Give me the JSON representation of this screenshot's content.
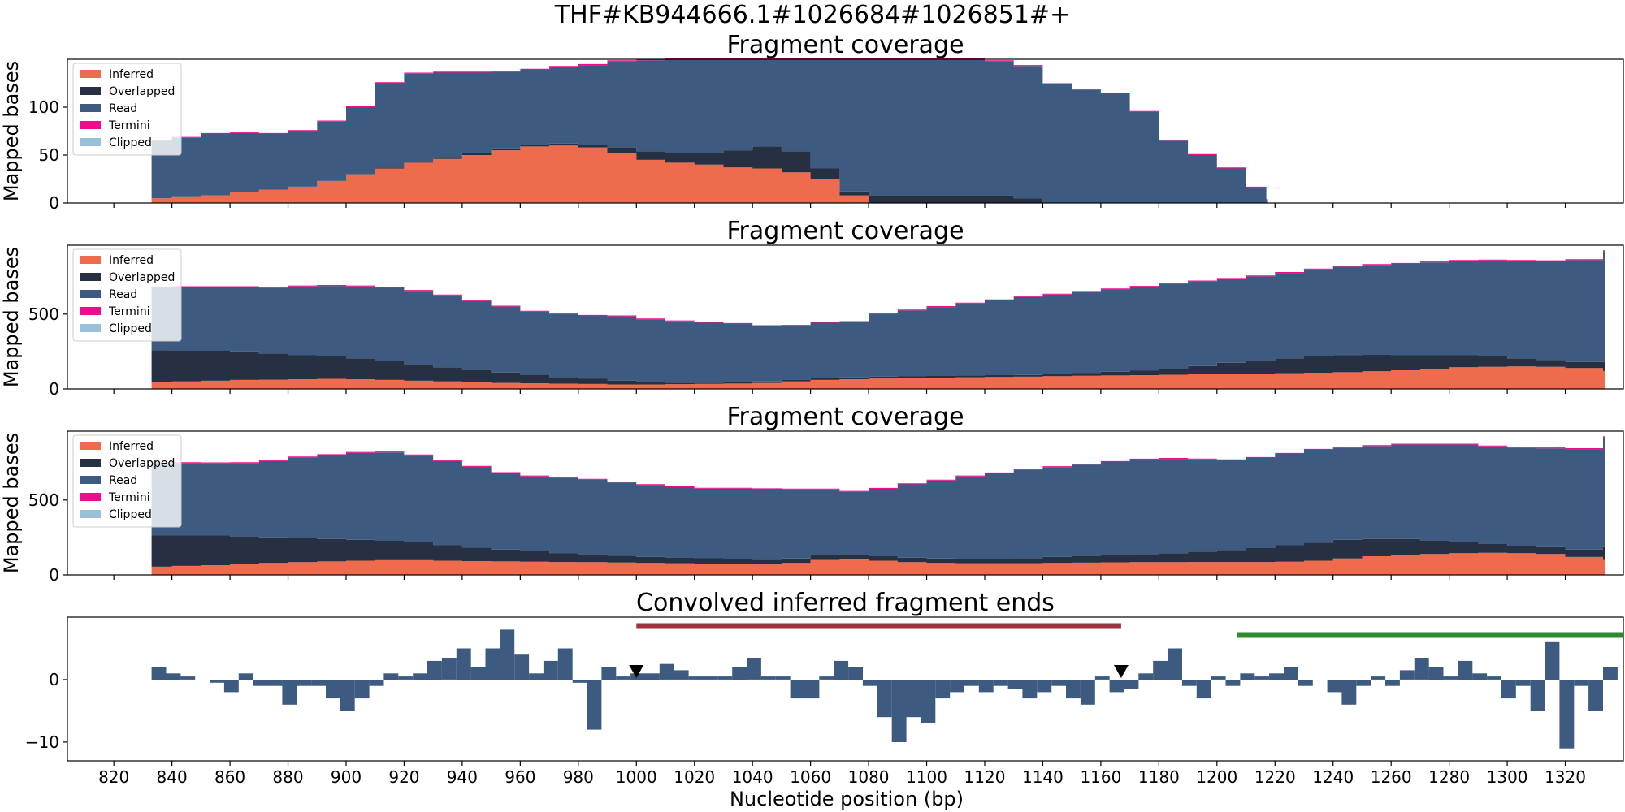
{
  "figure": {
    "title": "THF#KB944666.1#1026684#1026851#+",
    "xlabel": "Nucleotide position (bp)"
  },
  "colors": {
    "Inferred": "#ee6b4d",
    "Overlapped": "#272f42",
    "Read": "#3d5a80",
    "Termini": "#ee0c8f",
    "Clipped": "#98c1d9",
    "bar": "#3d5a80",
    "red_span": "#9b3340",
    "green_span": "#2d8a2d",
    "marker": "#000000"
  },
  "chart_data": [
    {
      "type": "area",
      "title": "Fragment coverage",
      "ylabel": "Mapped bases",
      "legend": [
        "Inferred",
        "Overlapped",
        "Read",
        "Termini",
        "Clipped"
      ],
      "legend_position": "upper-left",
      "xlim": [
        804,
        1340
      ],
      "ylim": [
        0,
        150
      ],
      "yticks": [
        0,
        50,
        100
      ],
      "x": [
        833,
        840,
        850,
        860,
        870,
        880,
        890,
        900,
        910,
        920,
        930,
        940,
        950,
        960,
        970,
        980,
        990,
        1000,
        1010,
        1020,
        1030,
        1040,
        1050,
        1060,
        1070,
        1080,
        1090,
        1100,
        1110,
        1120,
        1130,
        1140,
        1150,
        1160,
        1170,
        1180,
        1190,
        1200,
        1210,
        1217
      ],
      "series": [
        {
          "name": "Inferred",
          "values": [
            5,
            7,
            8,
            11,
            14,
            17,
            23,
            30,
            36,
            42,
            46,
            50,
            55,
            59,
            60,
            58,
            52,
            45,
            42,
            40,
            37,
            36,
            32,
            25,
            8,
            0,
            0,
            0,
            0,
            0,
            0,
            0,
            0,
            0,
            0,
            0,
            0,
            0,
            0,
            0
          ]
        },
        {
          "name": "Overlapped",
          "values": [
            0,
            0,
            0,
            0,
            0,
            0,
            0,
            0,
            1,
            1,
            2,
            2,
            2,
            2,
            2,
            3,
            6,
            9,
            10,
            12,
            18,
            23,
            22,
            11,
            4,
            8,
            8,
            8,
            8,
            8,
            5,
            0,
            0,
            0,
            0,
            0,
            0,
            0,
            0,
            0
          ]
        },
        {
          "name": "Read",
          "values": [
            60,
            61,
            64,
            62,
            58,
            58,
            62,
            70,
            88,
            92,
            88,
            84,
            80,
            78,
            80,
            83,
            90,
            95,
            98,
            98,
            95,
            91,
            96,
            114,
            138,
            142,
            142,
            142,
            142,
            140,
            138,
            124,
            118,
            114,
            95,
            65,
            50,
            36,
            16,
            3
          ]
        },
        {
          "name": "Termini",
          "values": [
            1,
            1,
            1,
            1,
            1,
            1,
            1,
            1,
            1,
            1,
            1,
            1,
            1,
            1,
            1,
            1,
            1,
            1,
            1,
            1,
            1,
            1,
            1,
            1,
            1,
            1,
            1,
            1,
            1,
            1,
            1,
            1,
            1,
            1,
            1,
            1,
            1,
            1,
            1,
            1
          ]
        },
        {
          "name": "Clipped",
          "values": [
            0,
            0,
            0,
            0,
            0,
            0,
            0,
            0,
            0,
            0,
            0,
            0,
            0,
            0,
            0,
            0,
            0,
            0,
            0,
            0,
            0,
            0,
            0,
            0,
            0,
            0,
            0,
            0,
            0,
            0,
            0,
            0,
            0,
            0,
            0,
            0,
            0,
            0,
            0,
            0
          ]
        }
      ]
    },
    {
      "type": "area",
      "title": "Fragment coverage",
      "ylabel": "Mapped bases",
      "legend": [
        "Inferred",
        "Overlapped",
        "Read",
        "Termini",
        "Clipped"
      ],
      "legend_position": "upper-left",
      "xlim": [
        804,
        1340
      ],
      "ylim": [
        0,
        960
      ],
      "yticks": [
        0,
        500
      ],
      "x": [
        833,
        840,
        850,
        860,
        870,
        880,
        890,
        900,
        910,
        920,
        930,
        940,
        950,
        960,
        970,
        980,
        990,
        1000,
        1010,
        1020,
        1030,
        1040,
        1050,
        1060,
        1070,
        1080,
        1090,
        1100,
        1110,
        1120,
        1130,
        1140,
        1150,
        1160,
        1170,
        1180,
        1190,
        1200,
        1210,
        1220,
        1230,
        1240,
        1250,
        1260,
        1270,
        1280,
        1290,
        1300,
        1310,
        1320,
        1333
      ],
      "series": [
        {
          "name": "Inferred",
          "values": [
            48,
            50,
            55,
            60,
            62,
            65,
            68,
            65,
            60,
            55,
            50,
            45,
            40,
            38,
            35,
            33,
            30,
            30,
            32,
            34,
            36,
            40,
            50,
            60,
            65,
            70,
            72,
            75,
            78,
            80,
            82,
            85,
            88,
            90,
            92,
            95,
            98,
            100,
            102,
            105,
            108,
            112,
            118,
            125,
            135,
            145,
            148,
            150,
            148,
            140,
            120
          ]
        },
        {
          "name": "Overlapped",
          "values": [
            210,
            205,
            200,
            190,
            175,
            160,
            150,
            140,
            125,
            110,
            95,
            82,
            70,
            58,
            45,
            35,
            25,
            15,
            10,
            8,
            8,
            10,
            12,
            12,
            12,
            12,
            12,
            12,
            12,
            12,
            12,
            15,
            20,
            25,
            30,
            40,
            55,
            75,
            90,
            100,
            110,
            115,
            110,
            100,
            90,
            80,
            70,
            55,
            45,
            40,
            60
          ]
        },
        {
          "name": "Read",
          "values": [
            420,
            425,
            425,
            430,
            440,
            460,
            470,
            480,
            490,
            490,
            480,
            460,
            440,
            420,
            420,
            420,
            430,
            420,
            410,
            400,
            390,
            370,
            360,
            370,
            370,
            420,
            440,
            460,
            480,
            500,
            520,
            530,
            540,
            550,
            560,
            565,
            565,
            560,
            560,
            570,
            580,
            590,
            600,
            610,
            620,
            630,
            640,
            650,
            660,
            680,
            740
          ]
        },
        {
          "name": "Termini",
          "values": [
            6,
            6,
            6,
            6,
            6,
            6,
            6,
            6,
            6,
            6,
            6,
            6,
            6,
            6,
            6,
            6,
            6,
            6,
            6,
            6,
            6,
            6,
            6,
            6,
            6,
            6,
            6,
            6,
            6,
            6,
            6,
            6,
            6,
            6,
            6,
            6,
            6,
            6,
            6,
            6,
            6,
            6,
            6,
            6,
            6,
            6,
            6,
            6,
            6,
            6,
            6
          ]
        },
        {
          "name": "Clipped",
          "values": [
            0,
            0,
            0,
            0,
            0,
            0,
            0,
            0,
            0,
            0,
            0,
            0,
            0,
            0,
            0,
            0,
            0,
            0,
            0,
            0,
            0,
            0,
            0,
            0,
            0,
            0,
            0,
            0,
            0,
            0,
            0,
            0,
            0,
            0,
            0,
            0,
            0,
            0,
            0,
            0,
            0,
            0,
            0,
            0,
            0,
            0,
            0,
            0,
            0,
            0,
            0
          ]
        }
      ]
    },
    {
      "type": "area",
      "title": "Fragment coverage",
      "ylabel": "Mapped bases",
      "legend": [
        "Inferred",
        "Overlapped",
        "Read",
        "Termini",
        "Clipped"
      ],
      "legend_position": "upper-left",
      "xlim": [
        804,
        1340
      ],
      "ylim": [
        0,
        960
      ],
      "yticks": [
        0,
        500
      ],
      "x": [
        833,
        840,
        850,
        860,
        870,
        880,
        890,
        900,
        910,
        920,
        930,
        940,
        950,
        960,
        970,
        980,
        990,
        1000,
        1010,
        1020,
        1030,
        1040,
        1050,
        1060,
        1070,
        1080,
        1090,
        1100,
        1110,
        1120,
        1130,
        1140,
        1150,
        1160,
        1170,
        1180,
        1190,
        1200,
        1210,
        1220,
        1230,
        1240,
        1250,
        1260,
        1270,
        1280,
        1290,
        1300,
        1310,
        1320,
        1333
      ],
      "series": [
        {
          "name": "Inferred",
          "values": [
            55,
            60,
            65,
            72,
            80,
            85,
            90,
            95,
            98,
            98,
            95,
            92,
            90,
            88,
            86,
            85,
            83,
            80,
            78,
            75,
            72,
            70,
            80,
            100,
            105,
            95,
            85,
            80,
            78,
            78,
            78,
            80,
            82,
            84,
            85,
            85,
            86,
            86,
            86,
            88,
            95,
            110,
            125,
            135,
            140,
            145,
            148,
            145,
            140,
            120,
            100
          ]
        },
        {
          "name": "Overlapped",
          "values": [
            210,
            205,
            200,
            185,
            170,
            160,
            150,
            140,
            130,
            120,
            105,
            90,
            80,
            70,
            60,
            50,
            45,
            40,
            38,
            36,
            34,
            32,
            30,
            30,
            30,
            30,
            30,
            30,
            30,
            30,
            35,
            40,
            45,
            50,
            55,
            60,
            70,
            80,
            95,
            110,
            120,
            125,
            115,
            105,
            90,
            75,
            60,
            50,
            45,
            50,
            85
          ]
        },
        {
          "name": "Read",
          "values": [
            480,
            482,
            480,
            490,
            510,
            540,
            560,
            580,
            590,
            580,
            560,
            540,
            510,
            500,
            500,
            500,
            490,
            480,
            470,
            465,
            470,
            470,
            460,
            440,
            420,
            450,
            490,
            520,
            550,
            570,
            590,
            600,
            610,
            620,
            630,
            630,
            615,
            600,
            600,
            610,
            620,
            615,
            620,
            630,
            640,
            650,
            650,
            655,
            660,
            670,
            735
          ]
        },
        {
          "name": "Termini",
          "values": [
            6,
            6,
            6,
            6,
            6,
            6,
            6,
            6,
            6,
            6,
            6,
            6,
            6,
            6,
            6,
            6,
            6,
            6,
            6,
            6,
            6,
            6,
            6,
            6,
            6,
            6,
            6,
            6,
            6,
            6,
            6,
            6,
            6,
            6,
            6,
            6,
            6,
            6,
            6,
            6,
            6,
            6,
            6,
            6,
            6,
            6,
            6,
            6,
            6,
            6,
            6
          ]
        },
        {
          "name": "Clipped",
          "values": [
            0,
            0,
            0,
            0,
            0,
            0,
            0,
            0,
            0,
            0,
            0,
            0,
            0,
            0,
            0,
            0,
            0,
            0,
            0,
            0,
            0,
            0,
            0,
            0,
            0,
            0,
            0,
            0,
            0,
            0,
            0,
            0,
            0,
            0,
            0,
            0,
            0,
            0,
            0,
            0,
            0,
            0,
            0,
            0,
            0,
            0,
            0,
            0,
            0,
            0,
            0
          ]
        }
      ]
    },
    {
      "type": "bar",
      "title": "Convolved inferred fragment ends",
      "xlabel": "Nucleotide position (bp)",
      "xlim": [
        804,
        1340
      ],
      "ylim": [
        -13,
        10
      ],
      "yticks": [
        -10,
        0
      ],
      "xticks": [
        820,
        840,
        860,
        880,
        900,
        920,
        940,
        960,
        980,
        1000,
        1020,
        1040,
        1060,
        1080,
        1100,
        1120,
        1140,
        1160,
        1180,
        1200,
        1220,
        1240,
        1260,
        1280,
        1300,
        1320
      ],
      "x": [
        833,
        838,
        843,
        848,
        853,
        858,
        863,
        868,
        873,
        878,
        883,
        888,
        893,
        898,
        903,
        908,
        913,
        918,
        923,
        928,
        933,
        938,
        943,
        948,
        953,
        958,
        963,
        968,
        973,
        978,
        983,
        988,
        993,
        998,
        1003,
        1008,
        1013,
        1018,
        1023,
        1028,
        1033,
        1038,
        1043,
        1048,
        1053,
        1058,
        1063,
        1068,
        1073,
        1078,
        1083,
        1088,
        1093,
        1098,
        1103,
        1108,
        1113,
        1118,
        1123,
        1128,
        1133,
        1138,
        1143,
        1148,
        1153,
        1158,
        1163,
        1168,
        1173,
        1178,
        1183,
        1188,
        1193,
        1198,
        1203,
        1208,
        1213,
        1218,
        1223,
        1228,
        1233,
        1238,
        1243,
        1248,
        1253,
        1258,
        1263,
        1268,
        1273,
        1278,
        1283,
        1288,
        1293,
        1298,
        1303,
        1308,
        1313,
        1318,
        1323,
        1328,
        1333
      ],
      "values": [
        2,
        1,
        0.5,
        0,
        -0.5,
        -2,
        1,
        -1,
        -1,
        -4,
        -1,
        -1,
        -3,
        -5,
        -3,
        -1,
        1,
        0.5,
        1,
        3,
        3.5,
        5,
        2,
        5,
        8,
        4,
        1,
        3,
        5,
        -0.5,
        -8,
        2,
        0.5,
        1,
        1,
        2.5,
        1.5,
        0.5,
        0.5,
        0.5,
        2,
        3.5,
        0.5,
        0.5,
        -3,
        -3,
        0.5,
        3,
        2,
        -1,
        -6,
        -10,
        -6,
        -7,
        -3,
        -2,
        -1,
        -2,
        -1,
        -1.5,
        -3,
        -2,
        -1,
        -3,
        -4,
        0.5,
        -2,
        -1.5,
        1,
        3,
        5,
        -1,
        -3,
        0.5,
        -1,
        1,
        0.5,
        1,
        2,
        -1,
        0,
        -2,
        -4,
        -1,
        0.5,
        -1,
        1.5,
        3.5,
        2,
        0.5,
        3,
        1,
        0.5,
        -3,
        -1,
        -5,
        6,
        -11,
        -1,
        -5,
        2
      ],
      "intervals": [
        {
          "start": 1000,
          "end": 1167,
          "color": "red_span"
        },
        {
          "start": 1207,
          "end": 1340,
          "color": "green_span"
        }
      ],
      "markers": [
        1000,
        1167
      ]
    }
  ]
}
